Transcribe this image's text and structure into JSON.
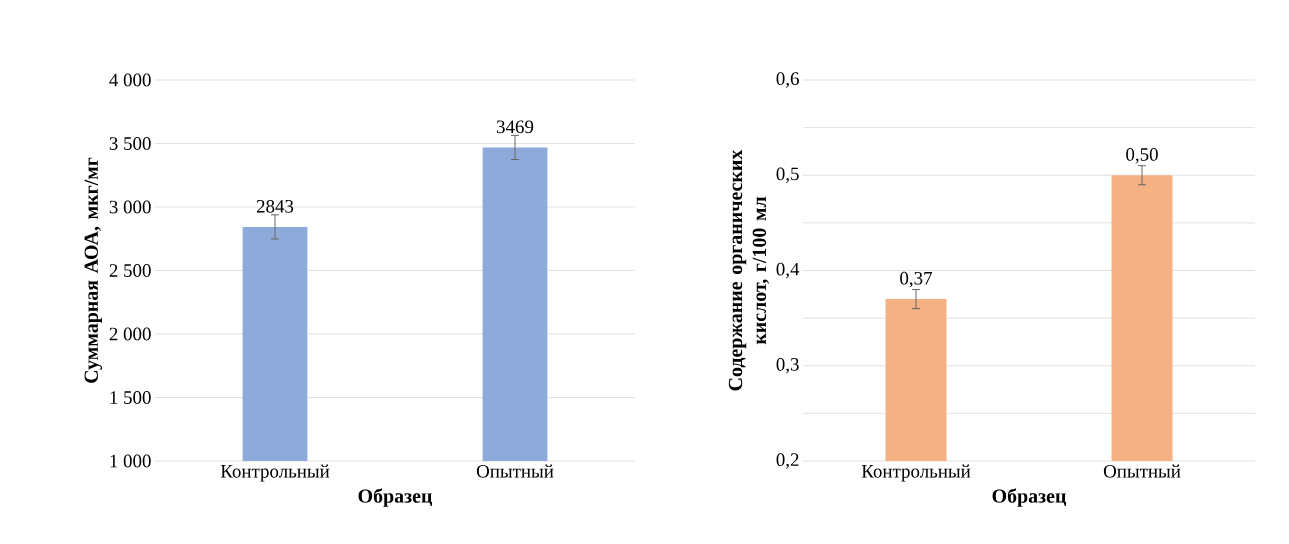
{
  "chart_data": [
    {
      "type": "bar",
      "categories": [
        "Контрольный",
        "Опытный"
      ],
      "values": [
        2843,
        3469
      ],
      "errors": [
        95,
        95
      ],
      "color": "#8eaadb",
      "xlabel": "Образец",
      "ylabel": "Суммарная АОА, мкг/мг",
      "ylim": [
        1000,
        4000
      ],
      "yticks": [
        {
          "value": 1000,
          "label": "1 000"
        },
        {
          "value": 1500,
          "label": "1 500"
        },
        {
          "value": 2000,
          "label": "2 000"
        },
        {
          "value": 2500,
          "label": "2 500"
        },
        {
          "value": 3000,
          "label": "3 000"
        },
        {
          "value": 3500,
          "label": "3 500"
        },
        {
          "value": 4000,
          "label": "4 000"
        }
      ],
      "grid": "y",
      "data_labels": true
    },
    {
      "type": "bar",
      "categories": [
        "Контрольный",
        "Опытный"
      ],
      "values": [
        0.37,
        0.5
      ],
      "errors": [
        0.01,
        0.01
      ],
      "color": "#f4b183",
      "xlabel": "Образец",
      "ylabel": "Содержание органических кислот, г/100 мл",
      "ylim": [
        0.2,
        0.6
      ],
      "yticks": [
        {
          "value": 0.2,
          "label": "0,2"
        },
        {
          "value": 0.25,
          "label": null
        },
        {
          "value": 0.3,
          "label": "0,3"
        },
        {
          "value": 0.35,
          "label": null
        },
        {
          "value": 0.4,
          "label": "0,4"
        },
        {
          "value": 0.45,
          "label": null
        },
        {
          "value": 0.5,
          "label": "0,5"
        },
        {
          "value": 0.55,
          "label": null
        },
        {
          "value": 0.6,
          "label": "0,6"
        }
      ],
      "grid": "y",
      "value_labels": [
        "0,37",
        "0,50"
      ]
    }
  ]
}
